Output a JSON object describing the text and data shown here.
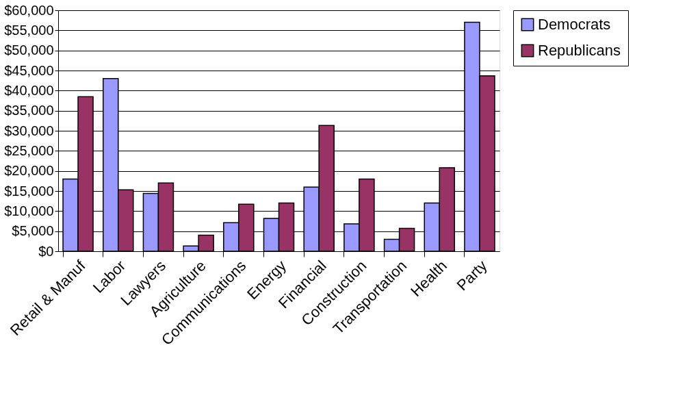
{
  "chart_data": {
    "type": "bar",
    "categories": [
      "Retail & Manuf",
      "Labor",
      "Lawyers",
      "Agriculture",
      "Communications",
      "Energy",
      "Financial",
      "Construction",
      "Transportation",
      "Health",
      "Party"
    ],
    "series": [
      {
        "name": "Democrats",
        "color": "#9999ff",
        "values": [
          18000,
          43000,
          14400,
          1300,
          7100,
          8200,
          16000,
          6800,
          3000,
          12000,
          57000
        ]
      },
      {
        "name": "Republicans",
        "color": "#993366",
        "values": [
          38500,
          15300,
          17000,
          4000,
          11700,
          12000,
          31300,
          18000,
          5700,
          20800,
          43700
        ]
      }
    ],
    "ylim": [
      0,
      60000
    ],
    "yticks": [
      {
        "value": 0,
        "label": "$0"
      },
      {
        "value": 5000,
        "label": "$5,000"
      },
      {
        "value": 10000,
        "label": "$10,000"
      },
      {
        "value": 15000,
        "label": "$15,000"
      },
      {
        "value": 20000,
        "label": "$20,000"
      },
      {
        "value": 25000,
        "label": "$25,000"
      },
      {
        "value": 30000,
        "label": "$30,000"
      },
      {
        "value": 35000,
        "label": "$35,000"
      },
      {
        "value": 40000,
        "label": "$40,000"
      },
      {
        "value": 45000,
        "label": "$45,000"
      },
      {
        "value": 50000,
        "label": "$50,000"
      },
      {
        "value": 55000,
        "label": "$55,000"
      },
      {
        "value": 60000,
        "label": "$60,000"
      }
    ],
    "grid": "y",
    "legend": "right"
  }
}
